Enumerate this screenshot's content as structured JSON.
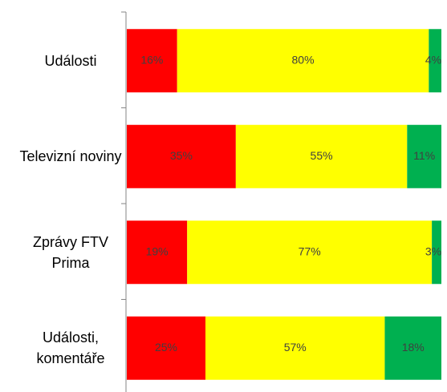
{
  "chart_data": {
    "type": "stacked-bar-100",
    "categories": [
      "Události",
      "Televizní noviny",
      "Zprávy FTV Prima",
      "Události, komentáře"
    ],
    "series": [
      {
        "color": "#ff0000",
        "values": [
          16,
          35,
          19,
          25
        ],
        "value_labels": [
          "16%",
          "35%",
          "19%",
          "25%"
        ]
      },
      {
        "color": "#ffff00",
        "values": [
          80,
          55,
          77,
          57
        ],
        "value_labels": [
          "80%",
          "55%",
          "77%",
          "57%"
        ]
      },
      {
        "color": "#00b050",
        "values": [
          4,
          11,
          3,
          18
        ],
        "value_labels": [
          "4%",
          "11%",
          "3%",
          "18%"
        ]
      }
    ]
  }
}
